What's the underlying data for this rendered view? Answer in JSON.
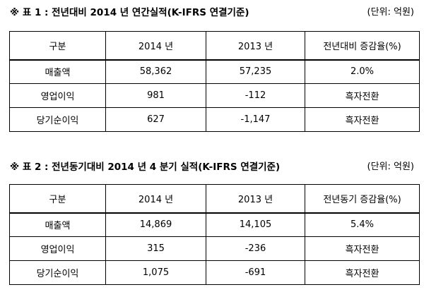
{
  "table1": {
    "title": "※ 표 1 : 전년대비 2014 년 연간실적(K-IFRS 연결기준)",
    "unit": "(단위: 억원)",
    "headers": [
      "구분",
      "2014 년",
      "2013 년",
      "전년대비 증감율(%)"
    ],
    "rows": [
      [
        "매출액",
        "58,362",
        "57,235",
        "2.0%"
      ],
      [
        "영업이익",
        "981",
        "-112",
        "흑자전환"
      ],
      [
        "당기순이익",
        "627",
        "-1,147",
        "흑자전환"
      ]
    ]
  },
  "table2": {
    "title": "※ 표 2 : 전년동기대비 2014 년 4 분기 실적(K-IFRS 연결기준)",
    "unit": "(단위: 억원)",
    "headers": [
      "구분",
      "2014 년",
      "2013 년",
      "전년동기 증감율(%)"
    ],
    "rows": [
      [
        "매출액",
        "14,869",
        "14,105",
        "5.4%"
      ],
      [
        "영업이익",
        "315",
        "-236",
        "흑자전환"
      ],
      [
        "당기순이익",
        "1,075",
        "-691",
        "흑자전환"
      ]
    ]
  }
}
